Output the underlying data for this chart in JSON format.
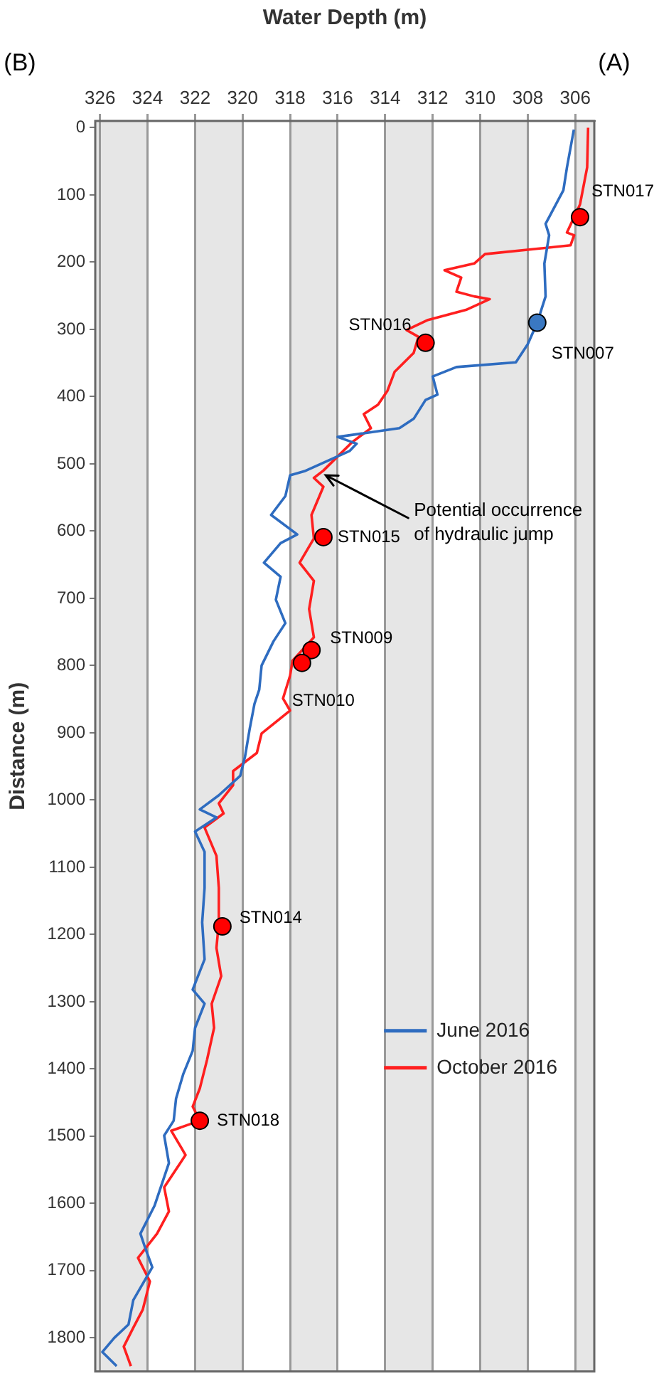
{
  "chart_data": {
    "type": "line",
    "xlabel": "Water Depth (m)",
    "ylabel": "Distance (m)",
    "xlim": [
      326.2,
      305.2
    ],
    "ylim": [
      1850,
      -10
    ],
    "xticks": [
      326,
      324,
      322,
      320,
      318,
      316,
      314,
      312,
      310,
      308,
      306
    ],
    "yticks": [
      0,
      100,
      200,
      300,
      400,
      500,
      600,
      700,
      800,
      900,
      1000,
      1100,
      1200,
      1300,
      1400,
      1500,
      1600,
      1700,
      1800
    ],
    "grid": "x",
    "legend": "right",
    "bands": [
      {
        "axis": "x",
        "from": 324,
        "to": 326.2,
        "color": "#e6e6e6"
      },
      {
        "axis": "x",
        "from": 320,
        "to": 322,
        "color": "#e6e6e6"
      },
      {
        "axis": "x",
        "from": 316,
        "to": 318,
        "color": "#e6e6e6"
      },
      {
        "axis": "x",
        "from": 312,
        "to": 314,
        "color": "#e6e6e6"
      },
      {
        "axis": "x",
        "from": 308,
        "to": 310,
        "color": "#e6e6e6"
      },
      {
        "axis": "x",
        "from": 305.2,
        "to": 306,
        "color": "#e6e6e6"
      }
    ],
    "series": [
      {
        "name": "June 2016",
        "color": "#2e6cc0",
        "marker": "none",
        "values": [
          3,
          59,
          93,
          143,
          160,
          202,
          251,
          290,
          322,
          349,
          356,
          370,
          397,
          405,
          433,
          447,
          454,
          460,
          470,
          481,
          511,
          517,
          548,
          576,
          605,
          618,
          647,
          668,
          702,
          737,
          764,
          800,
          836,
          857,
          894,
          936,
          964,
          993,
          1014,
          1026,
          1047,
          1077,
          1131,
          1182,
          1237,
          1282,
          1303,
          1339,
          1373,
          1408,
          1444,
          1477,
          1499,
          1540,
          1603,
          1645,
          1666,
          1695,
          1744,
          1780,
          1800,
          1821,
          1842
        ],
        "x": [
          306.06,
          306.35,
          306.5,
          307.25,
          307.1,
          307.3,
          307.25,
          307.6,
          308.0,
          308.5,
          311.0,
          312.0,
          311.8,
          312.3,
          312.8,
          313.4,
          314.8,
          316.0,
          315.2,
          315.5,
          317.4,
          318.0,
          318.2,
          318.8,
          317.7,
          318.4,
          319.1,
          318.4,
          318.6,
          318.2,
          318.7,
          319.2,
          319.3,
          319.5,
          319.7,
          319.9,
          320.1,
          321.0,
          321.8,
          321.1,
          322.0,
          321.6,
          321.6,
          321.7,
          321.6,
          322.1,
          321.6,
          322.0,
          322.1,
          322.5,
          322.8,
          322.9,
          323.3,
          323.1,
          323.7,
          324.3,
          324.1,
          323.8,
          324.6,
          324.8,
          325.4,
          325.9,
          325.3
        ]
      },
      {
        "name": "October 2016",
        "color": "#ff1f1f",
        "marker": "none",
        "values": [
          0,
          59,
          114,
          156,
          160,
          175,
          188,
          202,
          212,
          223,
          244,
          251,
          255,
          271,
          286,
          301,
          311,
          335,
          363,
          391,
          412,
          426,
          447,
          468,
          496,
          510,
          521,
          534,
          576,
          611,
          647,
          674,
          716,
          758,
          793,
          815,
          849,
          867,
          901,
          930,
          957,
          978,
          1005,
          1020,
          1041,
          1083,
          1131,
          1182,
          1220,
          1262,
          1303,
          1339,
          1387,
          1429,
          1456,
          1477,
          1492,
          1528,
          1576,
          1612,
          1645,
          1681,
          1716,
          1758,
          1785,
          1813,
          1842
        ],
        "x": [
          305.46,
          305.5,
          305.8,
          306.35,
          306.05,
          306.2,
          309.8,
          310.25,
          311.5,
          310.8,
          311.0,
          310.25,
          309.6,
          310.6,
          312.2,
          313.1,
          312.6,
          312.8,
          313.6,
          313.9,
          314.3,
          314.9,
          314.6,
          315.4,
          316.2,
          316.6,
          317.0,
          316.6,
          317.1,
          317.0,
          317.6,
          317.0,
          317.2,
          317.0,
          317.9,
          318.0,
          318.3,
          318.0,
          319.2,
          319.4,
          320.4,
          320.4,
          321.0,
          320.8,
          321.6,
          321.1,
          321.0,
          321.0,
          321.1,
          320.9,
          321.3,
          321.2,
          321.5,
          321.8,
          322.1,
          321.8,
          323.0,
          322.4,
          323.3,
          323.1,
          323.6,
          324.4,
          323.9,
          324.2,
          324.6,
          325.0,
          324.7
        ]
      },
      {
        "type": "scatter",
        "marker": "circle",
        "values": [
          133,
          290,
          320,
          609,
          777,
          796,
          1188,
          1477
        ],
        "x": [
          305.8,
          307.6,
          312.3,
          316.6,
          317.1,
          317.5,
          320.85,
          321.8
        ],
        "colors": [
          "#ff0000",
          "#3a78c2",
          "#ff0000",
          "#ff0000",
          "#ff0000",
          "#ff0000",
          "#ff0000",
          "#ff0000"
        ]
      }
    ],
    "annotations": [
      {
        "text": "STN017",
        "x": 305.8,
        "y": 133
      },
      {
        "text": "STN007",
        "x": 307.6,
        "y": 290
      },
      {
        "text": "STN016",
        "x": 312.3,
        "y": 320
      },
      {
        "text": "STN015",
        "x": 316.6,
        "y": 609
      },
      {
        "text": "STN009",
        "x": 317.1,
        "y": 777
      },
      {
        "text": "STN010",
        "x": 317.5,
        "y": 796
      },
      {
        "text": "STN014",
        "x": 320.85,
        "y": 1188
      },
      {
        "text": "STN018",
        "x": 321.8,
        "y": 1477
      },
      {
        "text": "Potential occurrence\nof hydraulic jump",
        "x": 316.5,
        "y": 517
      },
      "(A)",
      "(B)"
    ]
  }
}
